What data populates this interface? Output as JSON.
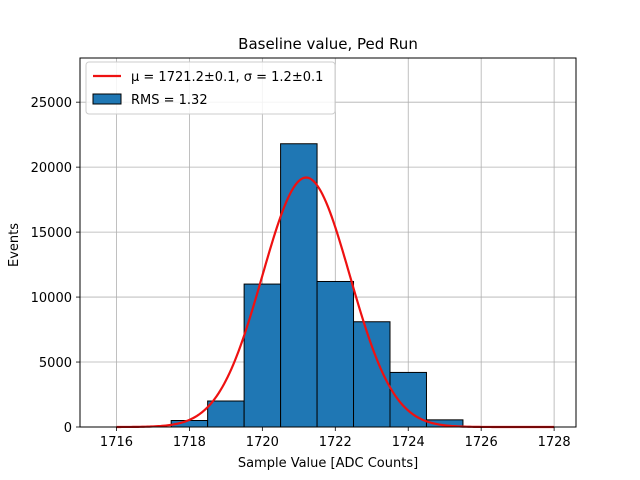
{
  "chart_data": {
    "type": "bar",
    "title": "Baseline value, Ped Run",
    "xlabel": "Sample Value [ADC Counts]",
    "ylabel": "Events",
    "xlim": [
      1715,
      1728.6
    ],
    "ylim": [
      0,
      28400
    ],
    "xticks": [
      1716,
      1718,
      1720,
      1722,
      1724,
      1726,
      1728
    ],
    "yticks": [
      0,
      5000,
      10000,
      15000,
      20000,
      25000
    ],
    "grid": true,
    "legend_placement": "top-left",
    "bar_color": "#1f77b4",
    "bar_edge_color": "#000000",
    "fit_color": "#ee1111",
    "bins": [
      {
        "x0": 1717.5,
        "x1": 1718.5,
        "value": 500
      },
      {
        "x0": 1718.5,
        "x1": 1719.5,
        "value": 2000
      },
      {
        "x0": 1719.5,
        "x1": 1720.5,
        "value": 11000
      },
      {
        "x0": 1720.5,
        "x1": 1721.5,
        "value": 21800
      },
      {
        "x0": 1721.5,
        "x1": 1722.5,
        "value": 11200
      },
      {
        "x0": 1722.5,
        "x1": 1723.5,
        "value": 8100
      },
      {
        "x0": 1723.5,
        "x1": 1724.5,
        "value": 4200
      },
      {
        "x0": 1724.5,
        "x1": 1725.5,
        "value": 550
      }
    ],
    "fit": {
      "mu": 1721.2,
      "sigma": 1.2,
      "amplitude": 19200,
      "x_range": [
        1716,
        1728
      ]
    },
    "legend": {
      "fit_label": "μ = 1721.2±0.1, σ = 1.2±0.1",
      "hist_label": "RMS = 1.32"
    }
  }
}
